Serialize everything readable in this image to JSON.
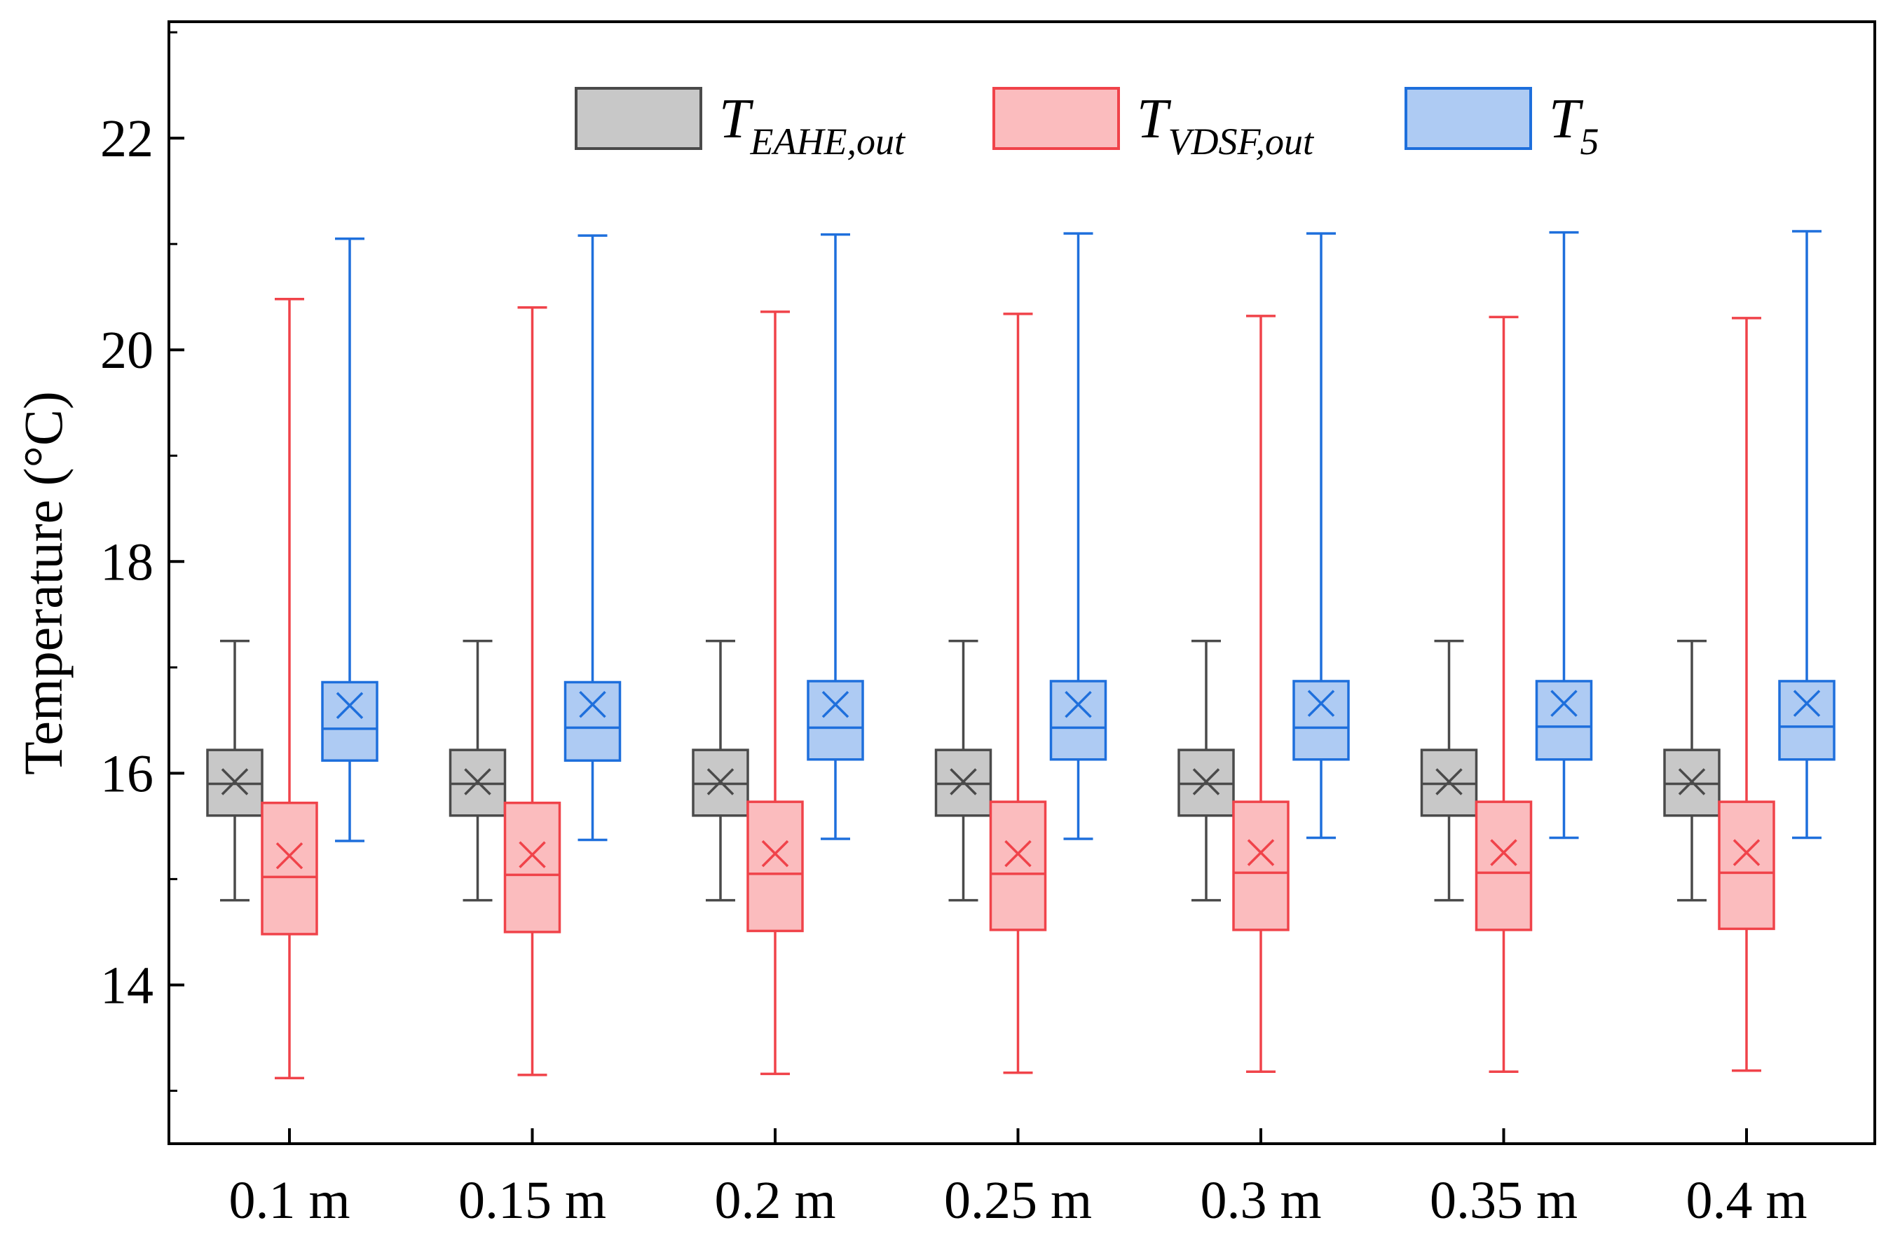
{
  "chart_data": {
    "type": "box",
    "title": "",
    "xlabel": "",
    "ylabel": "Temperature (°C)",
    "ylim": [
      12.5,
      23.1
    ],
    "yticks": [
      14,
      16,
      18,
      20,
      22
    ],
    "grid": false,
    "legend_position": "top",
    "categories": [
      "0.1 m",
      "0.15 m",
      "0.2 m",
      "0.25 m",
      "0.3 m",
      "0.35 m",
      "0.4 m"
    ],
    "series": [
      {
        "name": "T_EAHE,out",
        "legend_main": "T",
        "legend_sub": "EAHE,out",
        "edge_color": "#4a4a4a",
        "fill_color": "#c8c8c8",
        "stats": [
          {
            "min": 14.8,
            "q1": 15.6,
            "median": 15.9,
            "q3": 16.22,
            "max": 17.25,
            "mean": 15.92
          },
          {
            "min": 14.8,
            "q1": 15.6,
            "median": 15.9,
            "q3": 16.22,
            "max": 17.25,
            "mean": 15.92
          },
          {
            "min": 14.8,
            "q1": 15.6,
            "median": 15.9,
            "q3": 16.22,
            "max": 17.25,
            "mean": 15.92
          },
          {
            "min": 14.8,
            "q1": 15.6,
            "median": 15.9,
            "q3": 16.22,
            "max": 17.25,
            "mean": 15.92
          },
          {
            "min": 14.8,
            "q1": 15.6,
            "median": 15.9,
            "q3": 16.22,
            "max": 17.25,
            "mean": 15.92
          },
          {
            "min": 14.8,
            "q1": 15.6,
            "median": 15.9,
            "q3": 16.22,
            "max": 17.25,
            "mean": 15.92
          },
          {
            "min": 14.8,
            "q1": 15.6,
            "median": 15.9,
            "q3": 16.22,
            "max": 17.25,
            "mean": 15.92
          }
        ]
      },
      {
        "name": "T_VDSF,out",
        "legend_main": "T",
        "legend_sub": "VDSF,out",
        "edge_color": "#f0434a",
        "fill_color": "#fbbcbe",
        "stats": [
          {
            "min": 13.12,
            "q1": 14.48,
            "median": 15.02,
            "q3": 15.72,
            "max": 20.48,
            "mean": 15.22
          },
          {
            "min": 13.15,
            "q1": 14.5,
            "median": 15.04,
            "q3": 15.72,
            "max": 20.4,
            "mean": 15.23
          },
          {
            "min": 13.16,
            "q1": 14.51,
            "median": 15.05,
            "q3": 15.73,
            "max": 20.36,
            "mean": 15.24
          },
          {
            "min": 13.17,
            "q1": 14.52,
            "median": 15.05,
            "q3": 15.73,
            "max": 20.34,
            "mean": 15.24
          },
          {
            "min": 13.18,
            "q1": 14.52,
            "median": 15.06,
            "q3": 15.73,
            "max": 20.32,
            "mean": 15.25
          },
          {
            "min": 13.18,
            "q1": 14.52,
            "median": 15.06,
            "q3": 15.73,
            "max": 20.31,
            "mean": 15.25
          },
          {
            "min": 13.19,
            "q1": 14.53,
            "median": 15.06,
            "q3": 15.73,
            "max": 20.3,
            "mean": 15.25
          }
        ]
      },
      {
        "name": "T_5",
        "legend_main": "T",
        "legend_sub": "5",
        "edge_color": "#1e6fdc",
        "fill_color": "#aecbf3",
        "stats": [
          {
            "min": 15.36,
            "q1": 16.12,
            "median": 16.42,
            "q3": 16.86,
            "max": 21.05,
            "mean": 16.64
          },
          {
            "min": 15.37,
            "q1": 16.12,
            "median": 16.43,
            "q3": 16.86,
            "max": 21.08,
            "mean": 16.65
          },
          {
            "min": 15.38,
            "q1": 16.13,
            "median": 16.43,
            "q3": 16.87,
            "max": 21.09,
            "mean": 16.65
          },
          {
            "min": 15.38,
            "q1": 16.13,
            "median": 16.43,
            "q3": 16.87,
            "max": 21.1,
            "mean": 16.65
          },
          {
            "min": 15.39,
            "q1": 16.13,
            "median": 16.43,
            "q3": 16.87,
            "max": 21.1,
            "mean": 16.66
          },
          {
            "min": 15.39,
            "q1": 16.13,
            "median": 16.44,
            "q3": 16.87,
            "max": 21.11,
            "mean": 16.66
          },
          {
            "min": 15.39,
            "q1": 16.13,
            "median": 16.44,
            "q3": 16.87,
            "max": 21.12,
            "mean": 16.66
          }
        ]
      }
    ]
  }
}
